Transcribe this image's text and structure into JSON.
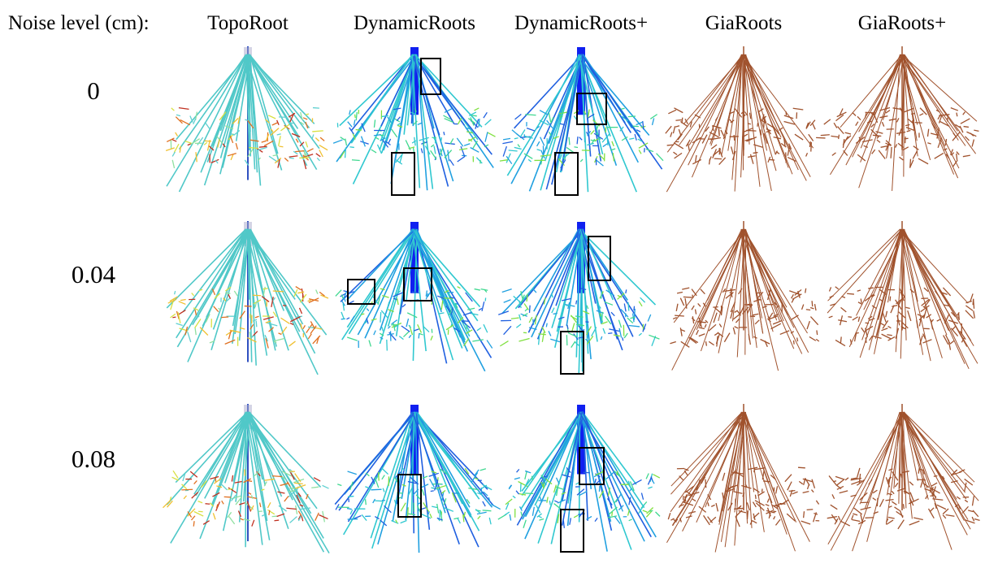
{
  "header": {
    "label": "Noise level (cm):",
    "columns": [
      "TopoRoot",
      "DynamicRoots",
      "DynamicRoots+",
      "GiaRoots",
      "GiaRoots+"
    ]
  },
  "rows": [
    {
      "label": "0"
    },
    {
      "label": "0.04"
    },
    {
      "label": "0.08"
    }
  ]
}
